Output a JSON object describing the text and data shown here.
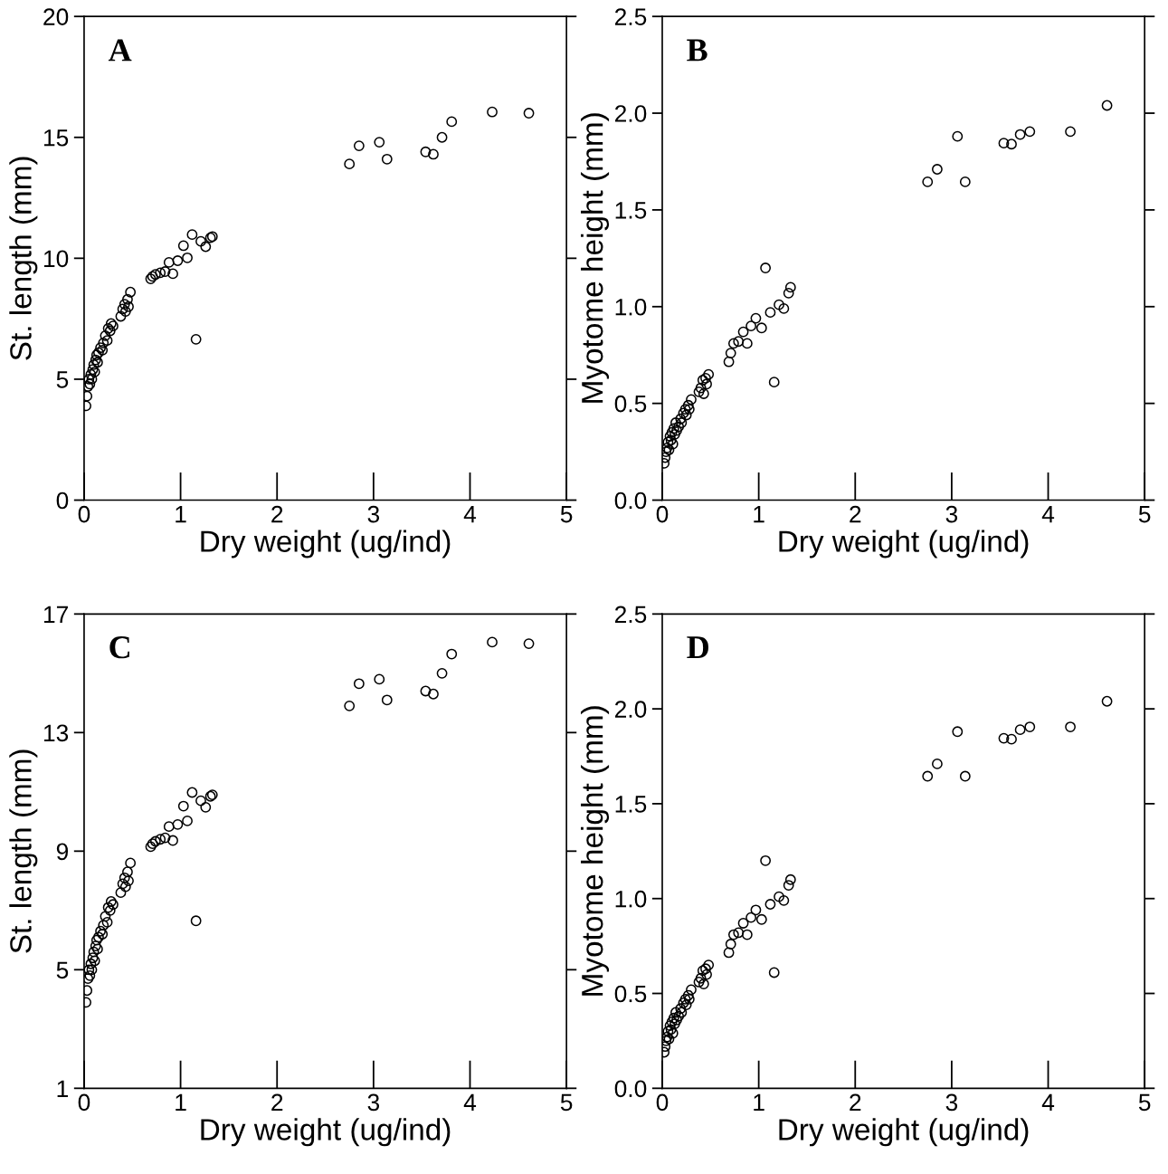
{
  "chart_data": [
    {
      "type": "scatter",
      "annotations": [
        "A"
      ],
      "xlabel": "Dry weight (ug/ind)",
      "ylabel": "St. length (mm)",
      "xlim": [
        0,
        5
      ],
      "xticks": [
        0,
        1,
        2,
        3,
        4,
        5
      ],
      "ylim": [
        0,
        20
      ],
      "yticks": [
        0,
        5,
        10,
        15,
        20
      ],
      "marker": "circle",
      "grid": false,
      "series": [
        {
          "color": "#000000",
          "x": [
            0.02,
            0.03,
            0.04,
            0.05,
            0.06,
            0.07,
            0.08,
            0.09,
            0.1,
            0.11,
            0.12,
            0.13,
            0.14,
            0.15,
            0.17,
            0.19,
            0.2,
            0.22,
            0.24,
            0.25,
            0.27,
            0.28,
            0.3,
            0.38,
            0.4,
            0.42,
            0.43,
            0.45,
            0.46,
            0.48,
            0.69,
            0.71,
            0.74,
            0.79,
            0.84,
            0.88,
            0.92,
            0.97,
            1.03,
            1.07,
            1.12,
            1.16,
            1.21,
            1.26,
            1.31,
            1.33,
            2.75,
            2.85,
            3.06,
            3.14,
            3.54,
            3.62,
            3.71,
            3.81,
            4.23,
            4.61
          ],
          "values": [
            3.9,
            4.3,
            4.7,
            5.0,
            4.8,
            5.2,
            5.0,
            5.4,
            5.6,
            5.3,
            5.8,
            6.0,
            5.7,
            6.1,
            6.3,
            6.2,
            6.5,
            6.8,
            6.6,
            7.1,
            7.0,
            7.3,
            7.2,
            7.6,
            7.9,
            8.1,
            7.8,
            8.3,
            8.0,
            8.6,
            9.15,
            9.25,
            9.33,
            9.4,
            9.45,
            9.83,
            9.36,
            9.9,
            10.52,
            10.02,
            10.98,
            6.65,
            10.7,
            10.48,
            10.85,
            10.9,
            13.9,
            14.65,
            14.8,
            14.1,
            14.4,
            14.3,
            15.0,
            15.65,
            16.05,
            16.0
          ]
        }
      ]
    },
    {
      "type": "scatter",
      "annotations": [
        "B"
      ],
      "xlabel": "Dry weight (ug/ind)",
      "ylabel": "Myotome height (mm)",
      "xlim": [
        0,
        5
      ],
      "xticks": [
        0,
        1,
        2,
        3,
        4,
        5
      ],
      "ylim": [
        0,
        2.5
      ],
      "yticks": [
        {
          "value": 0,
          "label": "0.0"
        },
        0.5,
        {
          "value": 1,
          "label": "1.0"
        },
        1.5,
        {
          "value": 2,
          "label": "2.0"
        },
        2.5
      ],
      "marker": "circle",
      "grid": false,
      "series": [
        {
          "color": "#000000",
          "x": [
            0.02,
            0.03,
            0.04,
            0.05,
            0.06,
            0.07,
            0.08,
            0.09,
            0.1,
            0.11,
            0.12,
            0.13,
            0.14,
            0.15,
            0.17,
            0.19,
            0.2,
            0.22,
            0.24,
            0.25,
            0.27,
            0.28,
            0.3,
            0.38,
            0.4,
            0.42,
            0.43,
            0.45,
            0.46,
            0.48,
            0.69,
            0.71,
            0.74,
            0.79,
            0.84,
            0.88,
            0.92,
            0.97,
            1.03,
            1.07,
            1.12,
            1.16,
            1.21,
            1.26,
            1.31,
            1.33,
            2.75,
            2.85,
            3.06,
            3.14,
            3.54,
            3.62,
            3.71,
            3.81,
            4.23,
            4.61
          ],
          "values": [
            0.19,
            0.22,
            0.25,
            0.27,
            0.3,
            0.26,
            0.33,
            0.31,
            0.35,
            0.29,
            0.37,
            0.34,
            0.4,
            0.36,
            0.38,
            0.42,
            0.4,
            0.45,
            0.47,
            0.44,
            0.49,
            0.47,
            0.52,
            0.56,
            0.58,
            0.62,
            0.55,
            0.63,
            0.6,
            0.65,
            0.715,
            0.76,
            0.81,
            0.82,
            0.87,
            0.81,
            0.9,
            0.94,
            0.89,
            1.2,
            0.97,
            0.61,
            1.01,
            0.99,
            1.07,
            1.1,
            1.645,
            1.71,
            1.88,
            1.645,
            1.845,
            1.84,
            1.89,
            1.905,
            1.905,
            2.04
          ]
        }
      ]
    },
    {
      "type": "scatter",
      "annotations": [
        "C"
      ],
      "xlabel": "Dry weight (ug/ind)",
      "ylabel": "St. length (mm)",
      "xlim": [
        0,
        5
      ],
      "xticks": [
        0,
        1,
        2,
        3,
        4,
        5
      ],
      "ylim": [
        1,
        17
      ],
      "yticks": [
        1,
        5,
        9,
        13,
        17
      ],
      "marker": "circle",
      "grid": false,
      "series": [
        {
          "color": "#000000",
          "x": [
            0.02,
            0.03,
            0.04,
            0.05,
            0.06,
            0.07,
            0.08,
            0.09,
            0.1,
            0.11,
            0.12,
            0.13,
            0.14,
            0.15,
            0.17,
            0.19,
            0.2,
            0.22,
            0.24,
            0.25,
            0.27,
            0.28,
            0.3,
            0.38,
            0.4,
            0.42,
            0.43,
            0.45,
            0.46,
            0.48,
            0.69,
            0.71,
            0.74,
            0.79,
            0.84,
            0.88,
            0.92,
            0.97,
            1.03,
            1.07,
            1.12,
            1.16,
            1.21,
            1.26,
            1.31,
            1.33,
            2.75,
            2.85,
            3.06,
            3.14,
            3.54,
            3.62,
            3.71,
            3.81,
            4.23,
            4.61
          ],
          "values": [
            3.9,
            4.3,
            4.7,
            5.0,
            4.8,
            5.2,
            5.0,
            5.4,
            5.6,
            5.3,
            5.8,
            6.0,
            5.7,
            6.1,
            6.3,
            6.2,
            6.5,
            6.8,
            6.6,
            7.1,
            7.0,
            7.3,
            7.2,
            7.6,
            7.9,
            8.1,
            7.8,
            8.3,
            8.0,
            8.6,
            9.15,
            9.25,
            9.33,
            9.4,
            9.45,
            9.83,
            9.36,
            9.9,
            10.52,
            10.02,
            10.98,
            6.65,
            10.7,
            10.48,
            10.85,
            10.9,
            13.9,
            14.65,
            14.8,
            14.1,
            14.4,
            14.3,
            15.0,
            15.65,
            16.05,
            16.0
          ]
        }
      ]
    },
    {
      "type": "scatter",
      "annotations": [
        "D"
      ],
      "xlabel": "Dry weight (ug/ind)",
      "ylabel": "Myotome height (mm)",
      "xlim": [
        0,
        5
      ],
      "xticks": [
        0,
        1,
        2,
        3,
        4,
        5
      ],
      "ylim": [
        0,
        2.5
      ],
      "yticks": [
        {
          "value": 0,
          "label": "0.0"
        },
        0.5,
        {
          "value": 1,
          "label": "1.0"
        },
        1.5,
        {
          "value": 2,
          "label": "2.0"
        },
        2.5
      ],
      "marker": "circle",
      "grid": false,
      "series": [
        {
          "color": "#000000",
          "x": [
            0.02,
            0.03,
            0.04,
            0.05,
            0.06,
            0.07,
            0.08,
            0.09,
            0.1,
            0.11,
            0.12,
            0.13,
            0.14,
            0.15,
            0.17,
            0.19,
            0.2,
            0.22,
            0.24,
            0.25,
            0.27,
            0.28,
            0.3,
            0.38,
            0.4,
            0.42,
            0.43,
            0.45,
            0.46,
            0.48,
            0.69,
            0.71,
            0.74,
            0.79,
            0.84,
            0.88,
            0.92,
            0.97,
            1.03,
            1.07,
            1.12,
            1.16,
            1.21,
            1.26,
            1.31,
            1.33,
            2.75,
            2.85,
            3.06,
            3.14,
            3.54,
            3.62,
            3.71,
            3.81,
            4.23,
            4.61
          ],
          "values": [
            0.19,
            0.22,
            0.25,
            0.27,
            0.3,
            0.26,
            0.33,
            0.31,
            0.35,
            0.29,
            0.37,
            0.34,
            0.4,
            0.36,
            0.38,
            0.42,
            0.4,
            0.45,
            0.47,
            0.44,
            0.49,
            0.47,
            0.52,
            0.56,
            0.58,
            0.62,
            0.55,
            0.63,
            0.6,
            0.65,
            0.715,
            0.76,
            0.81,
            0.82,
            0.87,
            0.81,
            0.9,
            0.94,
            0.89,
            1.2,
            0.97,
            0.61,
            1.01,
            0.99,
            1.07,
            1.1,
            1.645,
            1.71,
            1.88,
            1.645,
            1.845,
            1.84,
            1.89,
            1.905,
            1.905,
            2.04
          ]
        }
      ]
    }
  ]
}
